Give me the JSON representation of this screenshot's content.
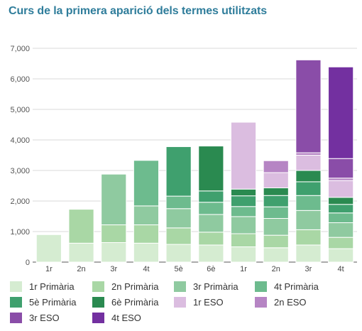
{
  "chart_data": {
    "type": "bar",
    "stacked": true,
    "title": "Curs de la primera aparició dels termes utilitzats",
    "xlabel": "",
    "ylabel": "",
    "ylim": [
      0,
      7000
    ],
    "yticks": [
      "0",
      "1,000",
      "2,000",
      "3,000",
      "4,000",
      "5,000",
      "6,000",
      "7,000"
    ],
    "grid": true,
    "legend_position": "bottom",
    "categories": [
      "1r",
      "2n",
      "3r",
      "4t",
      "5è",
      "6è",
      "1r",
      "2n",
      "3r",
      "4t"
    ],
    "series": [
      {
        "name": "1r Primària",
        "color": "#d5ecd1",
        "values": [
          900,
          620,
          640,
          620,
          580,
          560,
          500,
          470,
          560,
          440
        ]
      },
      {
        "name": "2n Primària",
        "color": "#a9d7a5",
        "values": [
          0,
          1110,
          580,
          600,
          540,
          420,
          430,
          410,
          500,
          370
        ]
      },
      {
        "name": "3r Primària",
        "color": "#8fcaa0",
        "values": [
          0,
          0,
          1660,
          620,
          630,
          580,
          560,
          550,
          630,
          480
        ]
      },
      {
        "name": "4t Primària",
        "color": "#6dbb8e",
        "values": [
          0,
          0,
          0,
          1490,
          410,
          400,
          330,
          380,
          490,
          320
        ]
      },
      {
        "name": "5è Primària",
        "color": "#3fa06e",
        "values": [
          0,
          0,
          0,
          0,
          1620,
          370,
          350,
          370,
          450,
          280
        ]
      },
      {
        "name": "6è Primària",
        "color": "#2a8a50",
        "values": [
          0,
          0,
          0,
          0,
          0,
          1470,
          220,
          250,
          370,
          230
        ]
      },
      {
        "name": "1r ESO",
        "color": "#dbbde0",
        "values": [
          0,
          0,
          0,
          0,
          0,
          0,
          2190,
          500,
          500,
          550
        ]
      },
      {
        "name": "2n ESO",
        "color": "#b685c4",
        "values": [
          0,
          0,
          0,
          0,
          0,
          0,
          0,
          390,
          80,
          80
        ]
      },
      {
        "name": "3r ESO",
        "color": "#8a4da8",
        "values": [
          0,
          0,
          0,
          0,
          0,
          0,
          0,
          0,
          3040,
          640
        ]
      },
      {
        "name": "4t ESO",
        "color": "#7330a0",
        "values": [
          0,
          0,
          0,
          0,
          0,
          0,
          0,
          0,
          0,
          3000
        ]
      }
    ]
  }
}
